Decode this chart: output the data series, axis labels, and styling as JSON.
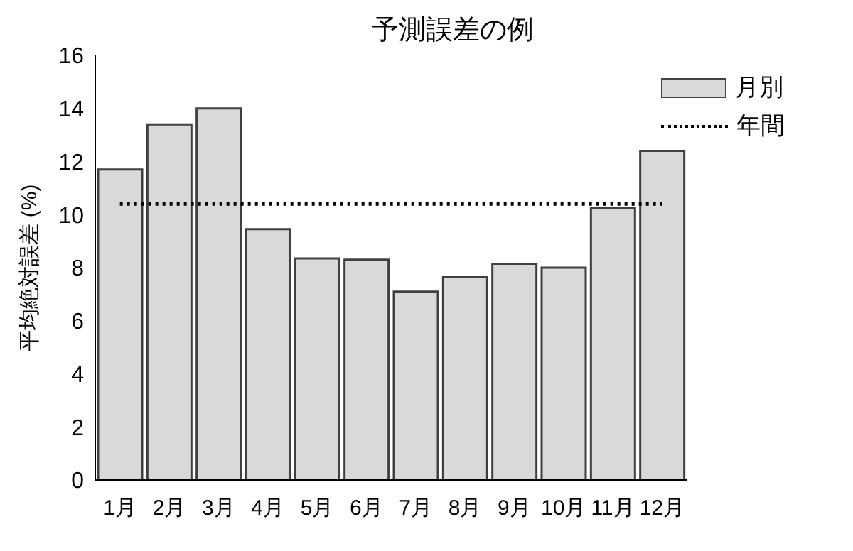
{
  "chart_data": {
    "type": "bar",
    "title": "予測誤差の例",
    "ylabel": "平均絶対誤差 (%)",
    "categories": [
      "1月",
      "2月",
      "3月",
      "4月",
      "5月",
      "6月",
      "7月",
      "8月",
      "9月",
      "10月",
      "11月",
      "12月"
    ],
    "series": [
      {
        "name": "月別",
        "color": "#d9d9d9",
        "values": [
          11.7,
          13.4,
          14.0,
          9.45,
          8.35,
          8.3,
          7.1,
          7.65,
          8.15,
          8.0,
          10.25,
          12.4
        ]
      },
      {
        "name": "年間",
        "type": "line",
        "color": "#000000",
        "line_style": "dotted",
        "values": [
          10.4,
          10.4,
          10.4,
          10.4,
          10.4,
          10.4,
          10.4,
          10.4,
          10.4,
          10.4,
          10.4,
          10.4
        ]
      }
    ],
    "ylim": [
      0,
      16
    ],
    "yticks": [
      0,
      2,
      4,
      6,
      8,
      10,
      12,
      14,
      16
    ],
    "grid": false,
    "legend": "top right",
    "marker": "none"
  }
}
